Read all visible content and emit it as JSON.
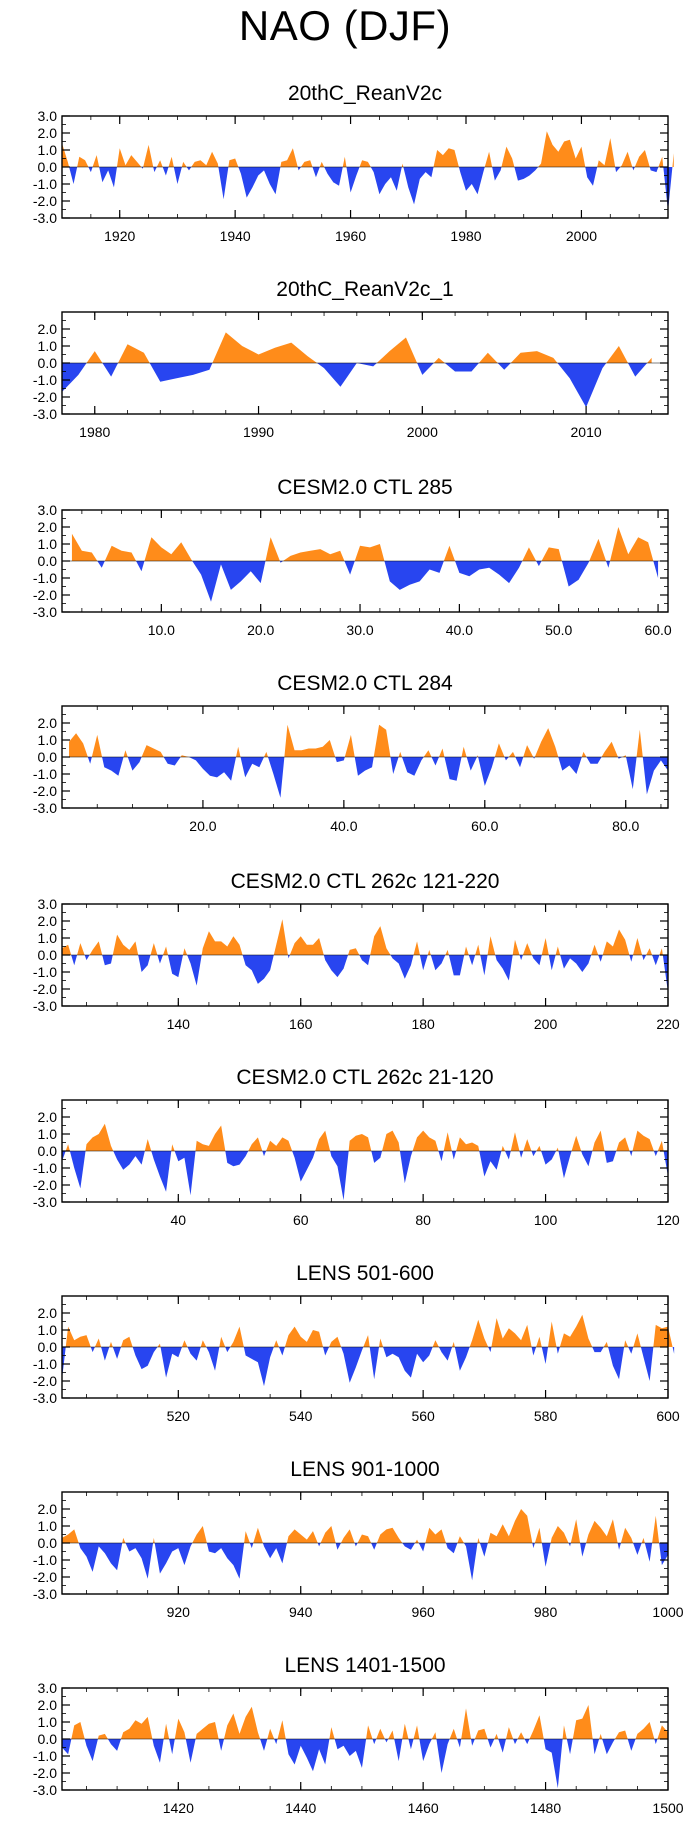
{
  "title": "NAO (DJF)",
  "colors": {
    "positive": "#ff8c1a",
    "negative": "#2845f0",
    "axis": "#000000"
  },
  "chart_data": [
    {
      "type": "area",
      "title": "20thC_ReanV2c",
      "ylim": [
        -3,
        3
      ],
      "yticks": [
        "3.0",
        "2.0",
        "1.0",
        "0.0",
        "-1.0",
        "-2.0",
        "-3.0"
      ],
      "xlim": [
        1910,
        2015
      ],
      "xticks": [
        1920,
        1940,
        1960,
        1980,
        2000
      ],
      "x_start": 1910,
      "values": [
        1.4,
        0.3,
        -1.0,
        0.6,
        0.4,
        -0.3,
        0.7,
        -0.9,
        -0.2,
        -1.2,
        1.1,
        0.1,
        0.7,
        0.3,
        -0.1,
        1.3,
        -0.3,
        0.4,
        -0.5,
        0.6,
        -1.0,
        0.3,
        -0.2,
        0.3,
        0.4,
        0.1,
        0.9,
        0.2,
        -1.9,
        0.4,
        0.5,
        -0.4,
        -1.8,
        -1.2,
        -0.5,
        -0.2,
        -1.0,
        -1.6,
        0.3,
        0.4,
        1.1,
        -0.2,
        0.3,
        0.4,
        -0.6,
        0.3,
        -0.4,
        -0.9,
        -1.1,
        0.6,
        -1.5,
        -0.5,
        0.4,
        0.3,
        -0.3,
        -1.6,
        -1.0,
        -0.6,
        -1.4,
        0.2,
        -1.2,
        -2.2,
        -0.7,
        -0.3,
        -0.6,
        1.0,
        0.7,
        1.1,
        1.0,
        -0.3,
        -1.4,
        -1.0,
        -1.6,
        -0.3,
        0.9,
        -0.8,
        -0.2,
        1.2,
        0.5,
        -0.8,
        -0.7,
        -0.5,
        -0.2,
        0.2,
        2.1,
        1.3,
        0.9,
        1.5,
        1.6,
        0.5,
        1.2,
        -0.6,
        -1.1,
        0.4,
        0.1,
        1.7,
        -0.3,
        0.1,
        0.9,
        -0.2,
        0.6,
        1.0,
        -0.2,
        -0.3,
        0.6,
        -2.6,
        0.8
      ],
      "line_every": 0
    },
    {
      "type": "area",
      "title": "20thC_ReanV2c_1",
      "ylim": [
        -3,
        3
      ],
      "yticks": [
        "2.0",
        "1.0",
        "0.0",
        "-1.0",
        "-2.0",
        "-3.0"
      ],
      "xlim": [
        1978,
        2015
      ],
      "xticks": [
        1980,
        1990,
        2000,
        2010
      ],
      "x_start": 1978,
      "values": [
        -1.7,
        -0.7,
        0.7,
        -0.8,
        1.1,
        0.6,
        -1.1,
        -0.9,
        -0.7,
        -0.4,
        1.8,
        1.0,
        0.5,
        0.9,
        1.2,
        0.4,
        -0.3,
        -1.4,
        0.0,
        -0.2,
        0.7,
        1.5,
        -0.7,
        0.3,
        -0.5,
        -0.5,
        0.6,
        -0.4,
        0.6,
        0.7,
        0.3,
        -0.9,
        -2.6,
        -0.3,
        1.0,
        -0.8,
        0.3
      ],
      "line_every": 0
    },
    {
      "type": "area",
      "title": "CESM2.0 CTL 285",
      "ylim": [
        -3,
        3
      ],
      "yticks": [
        "3.0",
        "2.0",
        "1.0",
        "0.0",
        "-1.0",
        "-2.0",
        "-3.0"
      ],
      "xlim": [
        0,
        61
      ],
      "xticks": [
        "10.0",
        "20.0",
        "30.0",
        "40.0",
        "50.0",
        "60.0"
      ],
      "xtick_values": [
        10,
        20,
        30,
        40,
        50,
        60
      ],
      "x_start": 1,
      "values": [
        1.6,
        0.6,
        0.5,
        -0.4,
        0.9,
        0.6,
        0.5,
        -0.6,
        1.4,
        0.8,
        0.4,
        1.1,
        0.1,
        -0.8,
        -2.4,
        -0.2,
        -1.7,
        -1.2,
        -0.6,
        -1.3,
        1.4,
        -0.1,
        0.3,
        0.5,
        0.6,
        0.7,
        0.4,
        0.6,
        -0.8,
        0.9,
        0.8,
        1.0,
        -1.2,
        -1.7,
        -1.4,
        -1.2,
        -0.5,
        -0.7,
        0.9,
        -0.7,
        -0.9,
        -0.5,
        -0.4,
        -0.8,
        -1.3,
        -0.4,
        0.8,
        -0.3,
        0.8,
        0.7,
        -1.5,
        -1.1,
        -0.1,
        1.3,
        -0.4,
        2.0,
        0.4,
        1.4,
        1.1,
        -1.0
      ],
      "line_every": 0
    },
    {
      "type": "area",
      "title": "CESM2.0 CTL 284",
      "ylim": [
        -3,
        3
      ],
      "yticks": [
        "2.0",
        "1.0",
        "0.0",
        "-1.0",
        "-2.0",
        "-3.0"
      ],
      "xlim": [
        0,
        86
      ],
      "xticks": [
        "20.0",
        "40.0",
        "60.0",
        "80.0"
      ],
      "xtick_values": [
        20,
        40,
        60,
        80
      ],
      "x_start": 1,
      "values": [
        0.9,
        1.4,
        0.8,
        -0.4,
        1.3,
        -0.6,
        -0.8,
        -1.1,
        0.4,
        -0.8,
        -0.3,
        0.7,
        0.5,
        0.3,
        -0.4,
        -0.5,
        0.1,
        0.0,
        -0.2,
        -0.7,
        -1.1,
        -1.2,
        -0.9,
        -1.4,
        0.6,
        -1.2,
        -0.4,
        -0.6,
        0.3,
        -1.0,
        -2.4,
        1.9,
        0.4,
        0.4,
        0.5,
        0.5,
        0.6,
        1.0,
        -0.3,
        -0.2,
        1.3,
        -1.1,
        -0.8,
        -0.6,
        1.9,
        1.6,
        -1.0,
        0.3,
        -0.9,
        -1.1,
        -0.2,
        0.4,
        -0.5,
        0.5,
        -1.3,
        -1.4,
        0.6,
        -0.8,
        0.1,
        -1.7,
        -0.6,
        0.8,
        -0.2,
        0.3,
        -0.6,
        0.7,
        -0.1,
        0.9,
        1.7,
        0.6,
        -0.8,
        -0.5,
        -1.0,
        0.3,
        -0.4,
        -0.4,
        0.3,
        0.9,
        -0.1,
        0.1,
        -1.9,
        1.6,
        -2.2,
        -0.8,
        -0.2,
        -0.8
      ],
      "line_every": 0
    },
    {
      "type": "area",
      "title": "CESM2.0 CTL 262c 121-220",
      "ylim": [
        -3,
        3
      ],
      "yticks": [
        "3.0",
        "2.0",
        "1.0",
        "0.0",
        "-1.0",
        "-2.0",
        "-3.0"
      ],
      "xlim": [
        121,
        220
      ],
      "xticks": [
        140,
        160,
        180,
        200,
        220
      ],
      "x_start": 121,
      "values": [
        0.4,
        0.6,
        -0.6,
        0.7,
        -0.3,
        0.3,
        0.8,
        -0.6,
        -0.5,
        1.2,
        0.6,
        0.3,
        0.8,
        -1.0,
        -0.6,
        0.7,
        -0.5,
        0.5,
        -1.1,
        -1.3,
        0.4,
        -0.5,
        -1.8,
        0.4,
        1.4,
        0.8,
        0.8,
        0.5,
        1.1,
        0.6,
        -0.6,
        -0.9,
        -1.7,
        -1.4,
        -0.9,
        0.6,
        2.1,
        -0.2,
        0.7,
        1.1,
        0.6,
        0.6,
        1.0,
        -0.3,
        -0.9,
        -1.3,
        -0.8,
        0.3,
        0.4,
        -0.3,
        -0.6,
        1.1,
        1.7,
        0.4,
        -0.2,
        -0.5,
        -1.4,
        -0.6,
        0.8,
        -0.9,
        0.3,
        -0.9,
        -0.5,
        0.3,
        -1.2,
        -1.2,
        0.5,
        -0.6,
        0.6,
        -1.2,
        1.1,
        -0.3,
        -0.8,
        -1.5,
        0.9,
        -0.3,
        0.7,
        -0.2,
        -0.6,
        1.0,
        -0.9,
        0.5,
        -0.8,
        -0.2,
        -0.5,
        -1.0,
        -0.5,
        0.6,
        -0.4,
        0.8,
        0.5,
        1.5,
        0.9,
        -0.4,
        1.0,
        -0.3,
        0.4,
        -0.6,
        0.4,
        -2.2
      ],
      "line_every": 0
    },
    {
      "type": "area",
      "title": "CESM2.0 CTL 262c 21-120",
      "ylim": [
        -3,
        3
      ],
      "yticks": [
        "2.0",
        "1.0",
        "0.0",
        "-1.0",
        "-2.0",
        "-3.0"
      ],
      "xlim": [
        21,
        120
      ],
      "xticks": [
        40,
        60,
        80,
        100,
        120
      ],
      "x_start": 21,
      "values": [
        -0.6,
        0.4,
        -1.0,
        -2.2,
        0.4,
        0.8,
        1.0,
        1.6,
        0.3,
        -0.5,
        -1.1,
        -0.8,
        -0.3,
        -0.8,
        0.7,
        -0.5,
        -1.5,
        -2.4,
        0.4,
        -0.6,
        -0.4,
        -2.6,
        0.6,
        0.4,
        0.3,
        1.0,
        1.5,
        -0.7,
        -0.9,
        -0.8,
        -0.3,
        0.4,
        0.8,
        -0.3,
        0.6,
        0.3,
        0.8,
        0.6,
        -0.4,
        -1.8,
        -1.1,
        -0.4,
        0.7,
        1.2,
        -0.3,
        -0.9,
        -2.9,
        0.6,
        0.9,
        1.0,
        0.8,
        -0.7,
        -0.4,
        1.0,
        1.2,
        0.5,
        -1.9,
        -0.3,
        0.8,
        1.2,
        0.8,
        0.6,
        -0.6,
        1.1,
        -0.5,
        0.8,
        0.4,
        0.5,
        0.3,
        -1.5,
        -0.6,
        -1.1,
        0.3,
        -0.5,
        1.1,
        -0.4,
        0.7,
        -0.3,
        0.3,
        -0.8,
        -0.5,
        0.2,
        -1.6,
        -0.3,
        0.9,
        -0.2,
        -0.9,
        0.5,
        1.2,
        -0.7,
        -0.6,
        0.5,
        0.8,
        -0.3,
        1.2,
        0.9,
        0.7,
        -0.3,
        0.6,
        -1.5
      ],
      "line_every": 0
    },
    {
      "type": "area",
      "title": "LENS 501-600",
      "ylim": [
        -3,
        3
      ],
      "yticks": [
        "2.0",
        "1.0",
        "0.0",
        "-1.0",
        "-2.0",
        "-3.0"
      ],
      "xlim": [
        501,
        600
      ],
      "xticks": [
        520,
        540,
        560,
        580,
        600
      ],
      "x_start": 501,
      "values": [
        -1.9,
        1.2,
        0.4,
        0.6,
        0.7,
        -0.3,
        0.5,
        -0.8,
        0.3,
        -0.7,
        0.4,
        0.6,
        -0.5,
        -1.3,
        -1.1,
        -0.3,
        0.2,
        -1.8,
        -0.4,
        -0.6,
        0.4,
        -0.4,
        -0.8,
        0.4,
        -0.3,
        -1.4,
        0.6,
        -0.3,
        0.3,
        1.2,
        -0.5,
        -0.7,
        -0.9,
        -2.3,
        -0.6,
        0.4,
        -0.5,
        0.7,
        1.2,
        0.6,
        0.3,
        1.0,
        0.9,
        -0.5,
        0.3,
        0.6,
        -0.4,
        -2.1,
        -1.2,
        -0.2,
        0.7,
        -1.9,
        0.5,
        -0.6,
        -0.4,
        -0.6,
        -1.4,
        -1.8,
        -0.4,
        -0.9,
        -0.5,
        0.4,
        -0.3,
        -0.8,
        0.3,
        -1.4,
        -0.6,
        0.4,
        1.6,
        0.5,
        -0.3,
        1.7,
        0.5,
        1.1,
        0.8,
        0.4,
        1.3,
        -0.5,
        0.6,
        -1.0,
        1.5,
        -0.4,
        0.8,
        0.6,
        1.2,
        1.9,
        0.5,
        -0.3,
        -0.3,
        0.3,
        -1.1,
        -1.9,
        0.4,
        -0.4,
        0.8,
        -0.6,
        -2.0,
        1.3,
        1.1,
        1.2,
        -0.4
      ],
      "line_every": 0
    },
    {
      "type": "area",
      "title": "LENS 901-1000",
      "ylim": [
        -3,
        3
      ],
      "yticks": [
        "2.0",
        "1.0",
        "0.0",
        "-1.0",
        "-2.0",
        "-3.0"
      ],
      "xlim": [
        901,
        1000
      ],
      "xticks": [
        920,
        940,
        960,
        980,
        1000
      ],
      "x_start": 901,
      "values": [
        0.3,
        0.5,
        0.8,
        -0.3,
        -0.8,
        -1.7,
        -0.2,
        -0.6,
        -1.2,
        -1.6,
        0.3,
        -0.5,
        -0.3,
        -0.9,
        -2.1,
        0.3,
        -1.8,
        -1.2,
        -0.5,
        -0.3,
        -1.3,
        -0.2,
        0.5,
        1.0,
        -0.5,
        -0.6,
        -0.3,
        -0.9,
        -1.3,
        -2.1,
        0.7,
        -0.3,
        0.9,
        -0.2,
        -0.9,
        -0.3,
        -1.2,
        0.4,
        0.8,
        0.5,
        0.2,
        0.7,
        -0.2,
        0.6,
        1.0,
        -0.4,
        0.3,
        0.8,
        -0.2,
        0.5,
        0.4,
        -0.4,
        0.5,
        0.8,
        0.9,
        0.3,
        -0.2,
        -0.4,
        0.2,
        -0.5,
        0.9,
        0.5,
        0.8,
        -0.3,
        -0.6,
        0.4,
        -0.2,
        -2.2,
        0.3,
        -0.8,
        0.6,
        0.4,
        1.1,
        0.4,
        1.3,
        2.0,
        1.6,
        -0.3,
        0.9,
        -1.4,
        0.3,
        1.0,
        0.6,
        -0.2,
        1.4,
        -0.8,
        0.5,
        1.3,
        0.9,
        0.4,
        1.4,
        -0.4,
        0.9,
        0.3,
        -0.7,
        0.3,
        -1.1,
        1.6,
        -1.3,
        -0.7
      ],
      "line_every": 0
    },
    {
      "type": "area",
      "title": "LENS 1401-1500",
      "ylim": [
        -3,
        3
      ],
      "yticks": [
        "3.0",
        "2.0",
        "1.0",
        "0.0",
        "-1.0",
        "-2.0",
        "-3.0"
      ],
      "xlim": [
        1401,
        1500
      ],
      "xticks": [
        1420,
        1440,
        1460,
        1480,
        1500
      ],
      "x_start": 1401,
      "values": [
        -0.5,
        -0.9,
        0.8,
        1.0,
        -0.4,
        -1.3,
        0.2,
        0.3,
        -0.3,
        -0.7,
        0.4,
        0.6,
        1.1,
        0.9,
        1.3,
        -0.4,
        -1.4,
        0.9,
        -0.9,
        1.2,
        0.4,
        -1.4,
        0.3,
        0.6,
        0.9,
        1.0,
        -0.7,
        0.8,
        1.5,
        0.3,
        1.3,
        1.9,
        0.4,
        -0.7,
        0.6,
        -0.3,
        1.1,
        -0.9,
        -1.5,
        -0.4,
        -1.1,
        -1.9,
        -0.6,
        -1.5,
        0.7,
        -0.6,
        -0.4,
        -1.0,
        -0.7,
        -1.7,
        0.8,
        -0.3,
        0.6,
        -0.2,
        0.5,
        -1.3,
        0.9,
        -0.6,
        0.8,
        -1.3,
        -0.3,
        0.4,
        -2.0,
        -0.3,
        0.6,
        -0.5,
        1.8,
        -0.4,
        0.5,
        0.6,
        -0.5,
        0.3,
        -0.8,
        0.7,
        -0.3,
        0.4,
        -0.3,
        0.5,
        1.4,
        -0.6,
        -0.8,
        -2.9,
        0.8,
        -0.9,
        1.1,
        1.2,
        2.0,
        -0.9,
        0.3,
        -0.9,
        -0.2,
        0.4,
        0.5,
        -0.7,
        0.3,
        0.6,
        1.0,
        -0.3,
        0.8,
        0.4
      ],
      "line_every": 0
    }
  ]
}
